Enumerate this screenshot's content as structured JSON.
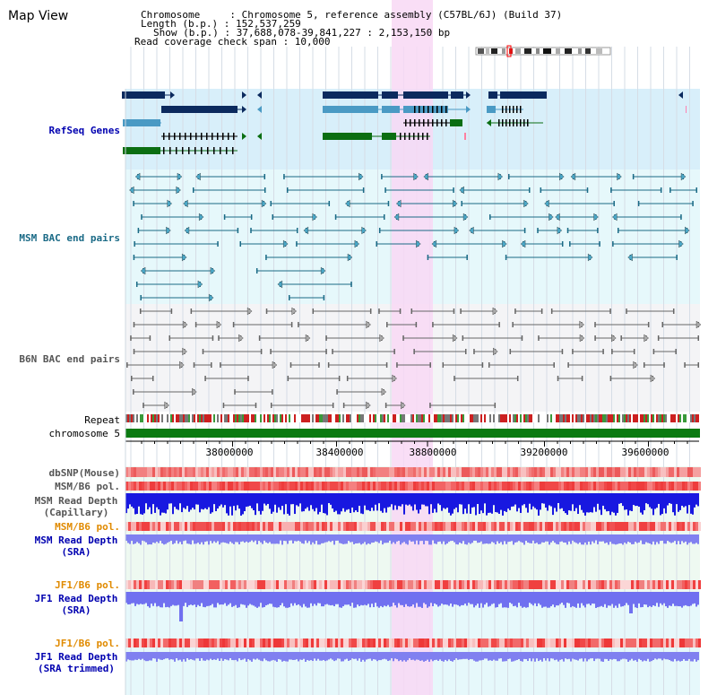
{
  "title": "Map View",
  "info": {
    "chromosome": "Chromosome     : Chromosome 5, reference assembly (C57BL/6J) (Build 37)",
    "length": "Length (b.p.) : 152,537,259",
    "show": "Show (b.p.) : 37,688,078-39,841,227 : 2,153,150 bp",
    "coverage": "Read coverage check span : 10,000"
  },
  "tracks": {
    "refseq": "RefSeq Genes",
    "msm_bac": "MSM BAC end pairs",
    "b6n_bac": "B6N BAC end pairs",
    "repeat": "Repeat",
    "chromosome": "chromosome 5",
    "dbsnp": "dbSNP(Mouse)",
    "msm_b6_pol_1": "MSM/B6 pol.",
    "msm_depth_cap_1": "MSM Read Depth",
    "msm_depth_cap_2": "(Capillary)",
    "msm_b6_pol_2": "MSM/B6 pol.",
    "msm_depth_sra_1": "MSM Read Depth",
    "msm_depth_sra_2": "(SRA)",
    "jf1_pol_1": "JF1/B6 pol.",
    "jf1_depth_sra_1": "JF1 Read Depth",
    "jf1_depth_sra_2": "(SRA)",
    "jf1_pol_2": "JF1/B6 pol.",
    "jf1_depth_trim_1": "JF1 Read Depth",
    "jf1_depth_trim_2": "(SRA trimmed)"
  },
  "axis": {
    "ticks": [
      "38000000",
      "38400000",
      "38800000",
      "39200000",
      "39600000"
    ]
  },
  "colors": {
    "refseq_bg": "#d8effa",
    "bac_bg": "#e6f8fb",
    "highlight": "#f8d8f4",
    "refseq_navy": "#0b2a5e",
    "refseq_teal": "#4a9ac4",
    "refseq_green": "#0b6e12",
    "msm_label": "#1a6a86",
    "b6n_label": "#555555",
    "blue_label": "#0000b0",
    "orange_label": "#e08a00",
    "chromosome_bar": "#0b7a12"
  }
}
